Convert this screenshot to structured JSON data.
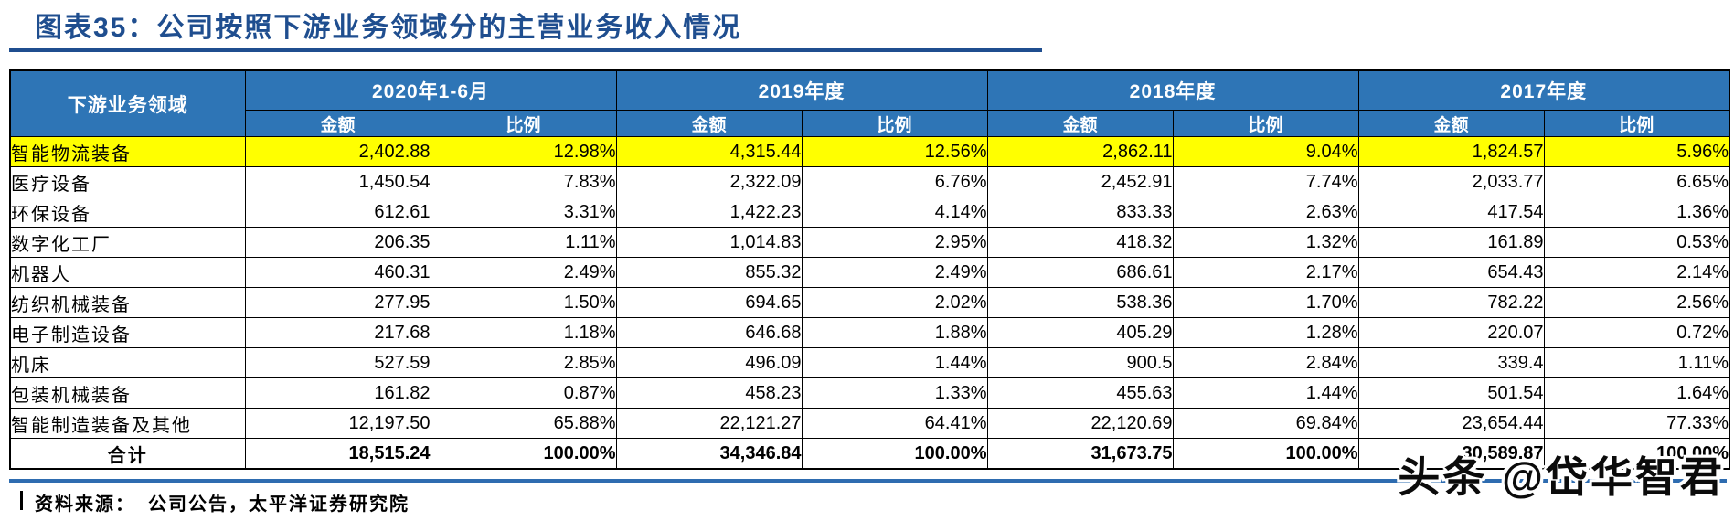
{
  "title": "图表35：公司按照下游业务领域分的主营业务收入情况",
  "source": {
    "label": "资料来源：",
    "text": "公司公告，太平洋证券研究院"
  },
  "watermark": "头条 @岱华智君",
  "colors": {
    "header_bg": "#2E75B6",
    "header_text": "#FFFFFF",
    "highlight_row": "#FFFF00",
    "title_blue": "#1F4E8F",
    "bottom_rule_blue": "#2E6CB0",
    "border": "#000000"
  },
  "chart_data": {
    "type": "table",
    "title": "图表35：公司按照下游业务领域分的主营业务收入情况",
    "row_header": "下游业务领域",
    "column_groups": [
      {
        "label": "2020年1-6月",
        "sub": [
          "金额",
          "比例"
        ]
      },
      {
        "label": "2019年度",
        "sub": [
          "金额",
          "比例"
        ]
      },
      {
        "label": "2018年度",
        "sub": [
          "金额",
          "比例"
        ]
      },
      {
        "label": "2017年度",
        "sub": [
          "金额",
          "比例"
        ]
      }
    ],
    "rows": [
      {
        "label": "智能物流装备",
        "highlight": true,
        "total": false,
        "values": [
          "2,402.88",
          "12.98%",
          "4,315.44",
          "12.56%",
          "2,862.11",
          "9.04%",
          "1,824.57",
          "5.96%"
        ]
      },
      {
        "label": "医疗设备",
        "highlight": false,
        "total": false,
        "values": [
          "1,450.54",
          "7.83%",
          "2,322.09",
          "6.76%",
          "2,452.91",
          "7.74%",
          "2,033.77",
          "6.65%"
        ]
      },
      {
        "label": "环保设备",
        "highlight": false,
        "total": false,
        "values": [
          "612.61",
          "3.31%",
          "1,422.23",
          "4.14%",
          "833.33",
          "2.63%",
          "417.54",
          "1.36%"
        ]
      },
      {
        "label": "数字化工厂",
        "highlight": false,
        "total": false,
        "values": [
          "206.35",
          "1.11%",
          "1,014.83",
          "2.95%",
          "418.32",
          "1.32%",
          "161.89",
          "0.53%"
        ]
      },
      {
        "label": "机器人",
        "highlight": false,
        "total": false,
        "values": [
          "460.31",
          "2.49%",
          "855.32",
          "2.49%",
          "686.61",
          "2.17%",
          "654.43",
          "2.14%"
        ]
      },
      {
        "label": "纺织机械装备",
        "highlight": false,
        "total": false,
        "values": [
          "277.95",
          "1.50%",
          "694.65",
          "2.02%",
          "538.36",
          "1.70%",
          "782.22",
          "2.56%"
        ]
      },
      {
        "label": "电子制造设备",
        "highlight": false,
        "total": false,
        "values": [
          "217.68",
          "1.18%",
          "646.68",
          "1.88%",
          "405.29",
          "1.28%",
          "220.07",
          "0.72%"
        ]
      },
      {
        "label": "机床",
        "highlight": false,
        "total": false,
        "values": [
          "527.59",
          "2.85%",
          "496.09",
          "1.44%",
          "900.5",
          "2.84%",
          "339.4",
          "1.11%"
        ]
      },
      {
        "label": "包装机械装备",
        "highlight": false,
        "total": false,
        "values": [
          "161.82",
          "0.87%",
          "458.23",
          "1.33%",
          "455.63",
          "1.44%",
          "501.54",
          "1.64%"
        ]
      },
      {
        "label": "智能制造装备及其他",
        "highlight": false,
        "total": false,
        "values": [
          "12,197.50",
          "65.88%",
          "22,121.27",
          "64.41%",
          "22,120.69",
          "69.84%",
          "23,654.44",
          "77.33%"
        ]
      },
      {
        "label": "合计",
        "highlight": false,
        "total": true,
        "values": [
          "18,515.24",
          "100.00%",
          "34,346.84",
          "100.00%",
          "31,673.75",
          "100.00%",
          "30,589.87",
          "100.00%"
        ]
      }
    ]
  }
}
